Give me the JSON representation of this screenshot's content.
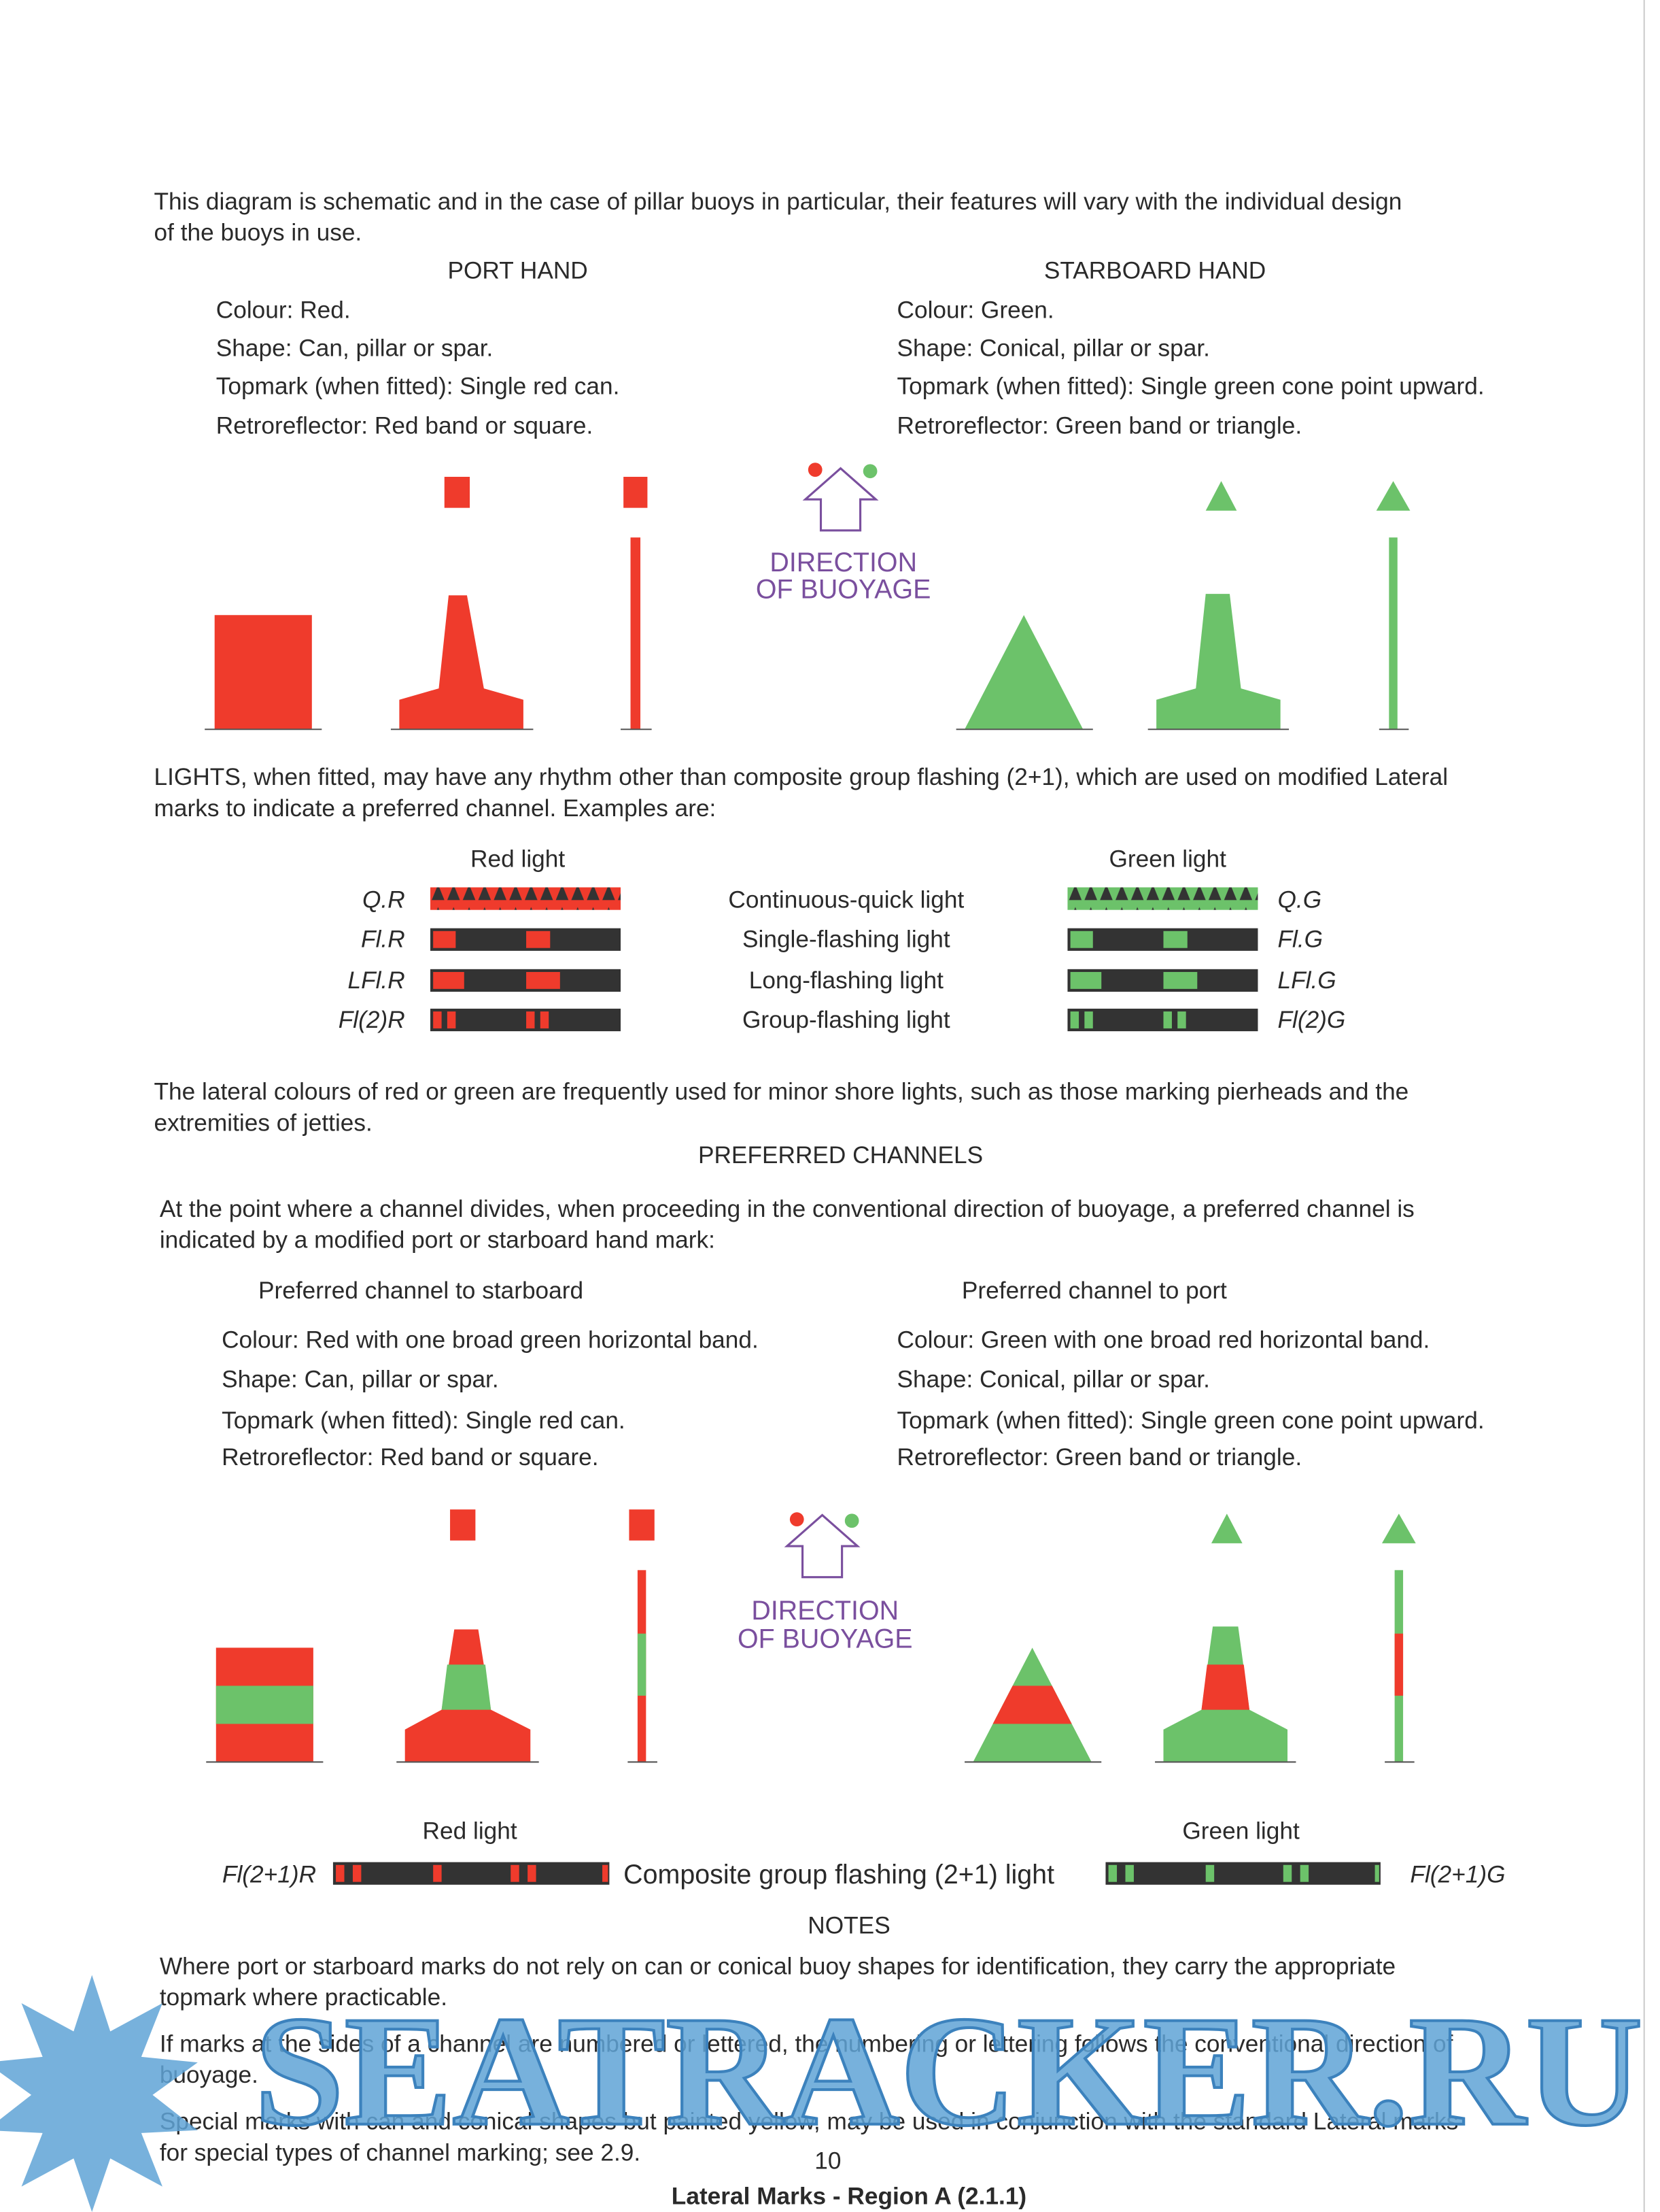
{
  "intro": [
    "This diagram is schematic and in the case of pillar buoys in particular, their features will vary with the individual design",
    "of the buoys in use."
  ],
  "port_hand": {
    "heading": "PORT HAND",
    "lines": [
      "Colour: Red.",
      "Shape: Can, pillar or spar.",
      "Topmark (when fitted): Single red can.",
      "Retroreflector: Red band or square."
    ]
  },
  "starboard_hand": {
    "heading": "STARBOARD HAND",
    "lines": [
      "Colour: Green.",
      "Shape: Conical, pillar or spar.",
      "Topmark (when fitted): Single green cone point upward.",
      "Retroreflector: Green band or triangle."
    ]
  },
  "direction_label": [
    "DIRECTION",
    "OF BUOYAGE"
  ],
  "lights_intro": [
    "LIGHTS, when fitted, may have any rhythm other than composite group flashing (2+1), which are used on modified Lateral",
    "marks to indicate a preferred channel. Examples are:"
  ],
  "lights": {
    "red_heading": "Red light",
    "green_heading": "Green light",
    "rows": [
      {
        "red": "Q.R",
        "description": "Continuous-quick light",
        "green": "Q.G"
      },
      {
        "red": "Fl.R",
        "description": "Single-flashing light",
        "green": "Fl.G"
      },
      {
        "red": "LFl.R",
        "description": "Long-flashing light",
        "green": "LFl.G"
      },
      {
        "red": "Fl(2)R",
        "description": "Group-flashing light",
        "green": "Fl(2)G"
      }
    ]
  },
  "minor_lights": [
    "The lateral colours of red or green are frequently used for minor shore lights, such as those marking pierheads and the",
    "extremities of jetties."
  ],
  "preferred": {
    "heading": "PREFERRED CHANNELS",
    "intro": [
      "At the point where a channel divides, when proceeding in the conventional direction of buoyage, a preferred channel is",
      "indicated by a modified port or starboard hand mark:"
    ],
    "to_starboard": {
      "heading": "Preferred channel to starboard",
      "lines": [
        "Colour: Red with one broad green horizontal band.",
        "Shape: Can, pillar or spar.",
        "Topmark (when fitted): Single red can.",
        "Retroreflector: Red band or square."
      ]
    },
    "to_port": {
      "heading": "Preferred channel to port",
      "lines": [
        "Colour: Green with one broad red horizontal band.",
        "Shape: Conical, pillar or spar.",
        "Topmark (when fitted): Single green cone point upward.",
        "Retroreflector: Green band or triangle."
      ]
    }
  },
  "composite": {
    "red_heading": "Red light",
    "red_code": "Fl(2+1)R",
    "description": "Composite group flashing (2+1) light",
    "green_heading": "Green light",
    "green_code": "Fl(2+1)G"
  },
  "notes": {
    "heading": "NOTES",
    "items": [
      [
        "Where port or starboard marks do not rely on can or conical buoy shapes for identification, they carry the appropriate",
        "topmark where practicable."
      ],
      [
        "If marks at the sides of a channel are numbered or lettered, the numbering or lettering follows the conventional direction of",
        "buoyage."
      ],
      [
        "Special marks with can and conical shapes but painted yellow, may be used in conjunction with the standard Lateral marks",
        "for special types of channel marking; see 2.9."
      ]
    ]
  },
  "page_number": "10",
  "footer": "Lateral Marks - Region A (2.1.1)",
  "watermark": "SEATRACKER.RU"
}
